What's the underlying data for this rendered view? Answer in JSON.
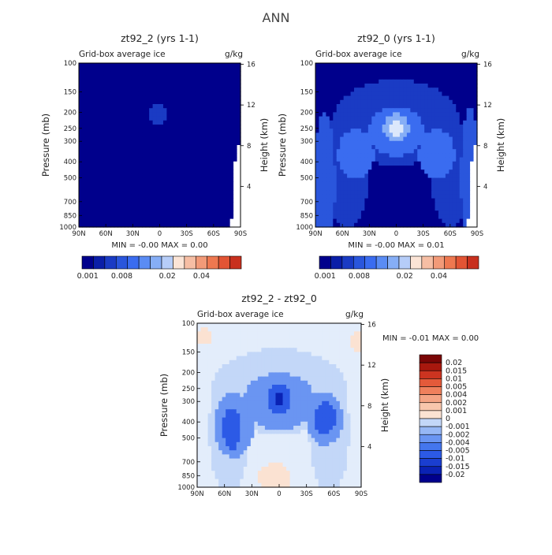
{
  "page_title": "ANN",
  "colors": {
    "diverging": [
      "#00008c",
      "#0a1ea8",
      "#1a3bc4",
      "#2a56dc",
      "#3a6cf0",
      "#5a8cf4",
      "#86aef6",
      "#b6cdf8",
      "#dce8fb",
      "#fbe4d6",
      "#f6bea4",
      "#f29a78",
      "#ee7850",
      "#e25434",
      "#c8301e",
      "#9e1410",
      "#700808"
    ],
    "difference": [
      "#00008c",
      "#0a22b4",
      "#1a3ed0",
      "#2c5ae6",
      "#4476ee",
      "#6a95f2",
      "#96b7f5",
      "#c3d7f8",
      "#e3edfb",
      "#fbe2d2",
      "#f8c6ac",
      "#f4a484",
      "#ef805c",
      "#e45a3a",
      "#cc3420",
      "#a8180e",
      "#7a0606"
    ]
  },
  "chart_data": [
    {
      "type": "heatmap",
      "title": "zt92_2 (yrs 1-1)",
      "subtitle_left": "Grid-box average ice",
      "subtitle_right": "g/kg",
      "ylabel": "Pressure (mb)",
      "ylabel_right": "Height (km)",
      "x_ticks": [
        "90N",
        "60N",
        "30N",
        "0",
        "30S",
        "60S",
        "90S"
      ],
      "x_values": [
        -90,
        -60,
        -30,
        0,
        30,
        60,
        90
      ],
      "xlim": [
        -90,
        90
      ],
      "y_ticks": [
        "100",
        "150",
        "200",
        "250",
        "300",
        "400",
        "500",
        "700",
        "850",
        "1000"
      ],
      "y_values": [
        100,
        150,
        200,
        250,
        300,
        400,
        500,
        700,
        850,
        1000
      ],
      "ylim": [
        1000,
        100
      ],
      "y_scale": "log",
      "height_ticks": [
        "16",
        "12",
        "8",
        "4"
      ],
      "height_values": [
        16,
        12,
        8,
        4
      ],
      "min_text": "MIN =  -0.00   MAX =   0.00",
      "colorbar_labels": [
        "0.001",
        "0.008",
        "0.02",
        "0.04"
      ],
      "colorbar_label_index": [
        0,
        3,
        7,
        10
      ],
      "colorbar_n": 14,
      "colorbar_start": 0,
      "field": {
        "background_level": 0,
        "blobs": [
          {
            "lat": -2,
            "p": 205,
            "wlat": 9,
            "wlp": 0.14,
            "level": 2
          }
        ],
        "missing_edge": true
      }
    },
    {
      "type": "heatmap",
      "title": "zt92_0 (yrs 1-1)",
      "subtitle_left": "Grid-box average ice",
      "subtitle_right": "g/kg",
      "ylabel": "Pressure (mb)",
      "ylabel_right": "Height (km)",
      "x_ticks": [
        "90N",
        "60N",
        "30N",
        "0",
        "30S",
        "60S",
        "90S"
      ],
      "x_values": [
        -90,
        -60,
        -30,
        0,
        30,
        60,
        90
      ],
      "xlim": [
        -90,
        90
      ],
      "y_ticks": [
        "100",
        "150",
        "200",
        "250",
        "300",
        "400",
        "500",
        "700",
        "850",
        "1000"
      ],
      "y_values": [
        100,
        150,
        200,
        250,
        300,
        400,
        500,
        700,
        850,
        1000
      ],
      "ylim": [
        1000,
        100
      ],
      "y_scale": "log",
      "height_ticks": [
        "16",
        "12",
        "8",
        "4"
      ],
      "height_values": [
        16,
        12,
        8,
        4
      ],
      "min_text": "MIN =  -0.00   MAX =   0.01",
      "colorbar_labels": [
        "0.001",
        "0.008",
        "0.02",
        "0.04"
      ],
      "colorbar_label_index": [
        0,
        3,
        7,
        10
      ],
      "colorbar_n": 14,
      "colorbar_start": 0,
      "field": {
        "background_level": 0,
        "blobs": [
          {
            "lat": 0,
            "p": 230,
            "wlat": 70,
            "wlp": 0.6,
            "level": 2
          },
          {
            "lat": -55,
            "p": 420,
            "wlat": 25,
            "wlp": 0.9,
            "level": 2
          },
          {
            "lat": 60,
            "p": 450,
            "wlat": 22,
            "wlp": 0.8,
            "level": 2
          },
          {
            "lat": -80,
            "p": 550,
            "wlat": 12,
            "wlp": 1.0,
            "level": 3
          },
          {
            "lat": 82,
            "p": 500,
            "wlat": 10,
            "wlp": 1.0,
            "level": 3
          },
          {
            "lat": 0,
            "p": 260,
            "wlat": 30,
            "wlp": 0.35,
            "level": 4
          },
          {
            "lat": 45,
            "p": 360,
            "wlat": 20,
            "wlp": 0.35,
            "level": 4
          },
          {
            "lat": -45,
            "p": 360,
            "wlat": 20,
            "wlp": 0.35,
            "level": 4
          },
          {
            "lat": 0,
            "p": 250,
            "wlat": 14,
            "wlp": 0.2,
            "level": 6
          },
          {
            "lat": 0,
            "p": 255,
            "wlat": 7,
            "wlp": 0.12,
            "level": 8
          }
        ],
        "missing_edge": true
      }
    },
    {
      "type": "heatmap",
      "title": "zt92_2 - zt92_0",
      "subtitle_left": "Grid-box average ice",
      "subtitle_right": "g/kg",
      "ylabel": "Pressure (mb)",
      "ylabel_right": "Height (km)",
      "x_ticks": [
        "90N",
        "60N",
        "30N",
        "0",
        "30S",
        "60S",
        "90S"
      ],
      "x_values": [
        -90,
        -60,
        -30,
        0,
        30,
        60,
        90
      ],
      "xlim": [
        -90,
        90
      ],
      "y_ticks": [
        "100",
        "150",
        "200",
        "250",
        "300",
        "400",
        "500",
        "700",
        "850",
        "1000"
      ],
      "y_values": [
        100,
        150,
        200,
        250,
        300,
        400,
        500,
        700,
        850,
        1000
      ],
      "ylim": [
        1000,
        100
      ],
      "y_scale": "log",
      "height_ticks": [
        "16",
        "12",
        "8",
        "4"
      ],
      "height_values": [
        16,
        12,
        8,
        4
      ],
      "min_text": "MIN =  -0.01   MAX =   0.00",
      "colorbar_labels": [
        "0.02",
        "0.015",
        "0.01",
        "0.005",
        "0.004",
        "0.002",
        "0.001",
        "0",
        "-0.001",
        "-0.002",
        "-0.004",
        "-0.005",
        "-0.01",
        "-0.015",
        "-0.02"
      ],
      "field": {
        "background_level": 8,
        "blobs": [
          {
            "lat": 0,
            "p": 260,
            "wlat": 75,
            "wlp": 0.6,
            "level": 7
          },
          {
            "lat": -55,
            "p": 450,
            "wlat": 22,
            "wlp": 0.9,
            "level": 7
          },
          {
            "lat": 55,
            "p": 450,
            "wlat": 22,
            "wlp": 0.9,
            "level": 7
          },
          {
            "lat": 0,
            "p": 300,
            "wlat": 40,
            "wlp": 0.4,
            "level": 5
          },
          {
            "lat": 50,
            "p": 380,
            "wlat": 20,
            "wlp": 0.38,
            "level": 5
          },
          {
            "lat": -50,
            "p": 420,
            "wlat": 22,
            "wlp": 0.45,
            "level": 5
          },
          {
            "lat": 0,
            "p": 290,
            "wlat": 12,
            "wlp": 0.2,
            "level": 3
          },
          {
            "lat": 50,
            "p": 380,
            "wlat": 12,
            "wlp": 0.22,
            "level": 3
          },
          {
            "lat": -52,
            "p": 440,
            "wlat": 10,
            "wlp": 0.3,
            "level": 3
          },
          {
            "lat": 0,
            "p": 285,
            "wlat": 5,
            "wlp": 0.1,
            "level": 1
          }
        ],
        "positive_patches": [
          {
            "lat": 85,
            "p": 130,
            "wlat": 6,
            "wlp": 0.15
          },
          {
            "lat": -82,
            "p": 120,
            "wlat": 8,
            "wlp": 0.12
          },
          {
            "lat": -5,
            "p": 870,
            "wlat": 18,
            "wlp": 0.2
          }
        ],
        "missing_edge": false
      }
    }
  ]
}
